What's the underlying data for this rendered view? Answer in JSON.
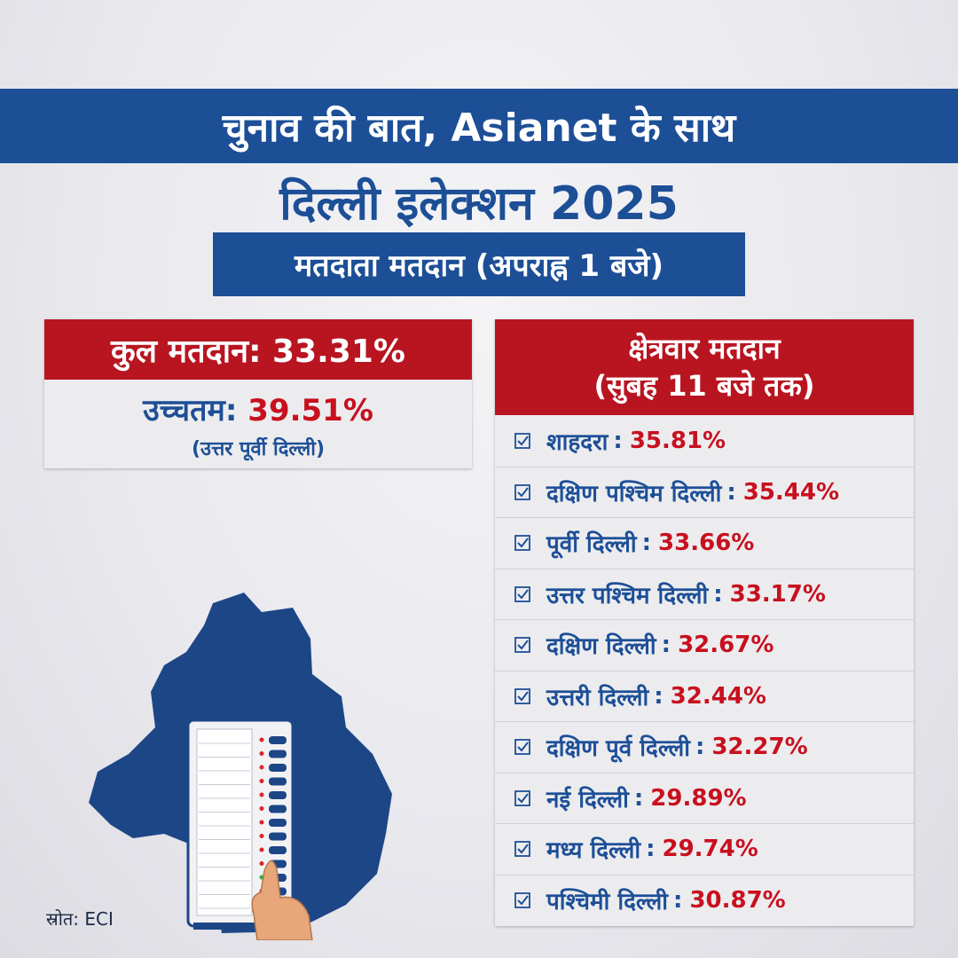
{
  "header": {
    "band_text": "चुनाव की बात, Asianet के साथ",
    "title": "दिल्ली इलेक्शन 2025",
    "subtitle": "मतदाता मतदान (अपराह्न 1 बजे)"
  },
  "total": {
    "heading": "कुल मतदान: 33.31%",
    "highest_label": "उच्चतम:",
    "highest_value": "39.51%",
    "highest_region": "(उत्तर पूर्वी दिल्ली)"
  },
  "regions": {
    "heading_line1": "क्षेत्रवार मतदान",
    "heading_line2": "(सुबह 11 बजे तक)",
    "items": [
      {
        "name": "शाहदरा",
        "value": "35.81%"
      },
      {
        "name": "दक्षिण पश्चिम दिल्ली",
        "value": "35.44%"
      },
      {
        "name": "पूर्वी दिल्ली",
        "value": "33.66%"
      },
      {
        "name": "उत्तर पश्चिम दिल्ली",
        "value": "33.17%"
      },
      {
        "name": "दक्षिण दिल्ली",
        "value": "32.67%"
      },
      {
        "name": "उत्तरी दिल्ली",
        "value": "32.44%"
      },
      {
        "name": "दक्षिण पूर्व दिल्ली",
        "value": "32.27%"
      },
      {
        "name": "नई दिल्ली",
        "value": "29.89%"
      },
      {
        "name": "मध्य दिल्ली",
        "value": "29.74%"
      },
      {
        "name": "पश्चिमी दिल्ली",
        "value": "30.87%"
      }
    ]
  },
  "source": "स्रोत: ECI",
  "colors": {
    "brand_blue": "#1d4f97",
    "accent_red": "#b81521",
    "value_red": "#c8101e"
  },
  "icons": {
    "row_icon": "checkbox-check-icon",
    "map": "delhi-map-silhouette",
    "machine": "evm-voting-machine-illustration"
  }
}
